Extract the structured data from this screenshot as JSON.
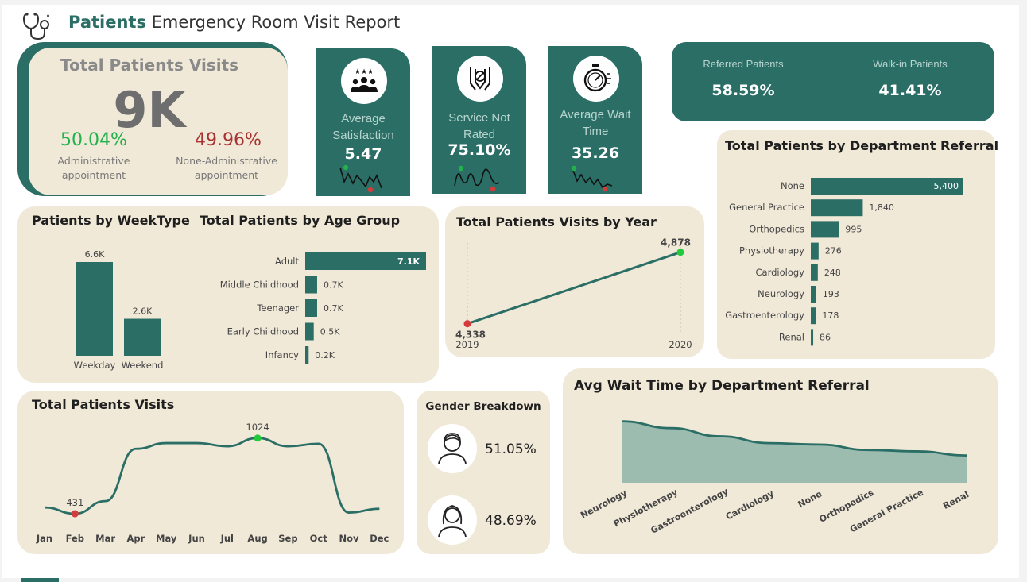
{
  "header": {
    "title_bold": "Patients",
    "title_rest": "Emergency Room Visit Report",
    "icon": "stethoscope-icon"
  },
  "total_visits_card": {
    "title": "Total Patients Visits",
    "value": "9K",
    "admin_pct": "50.04%",
    "admin_label": "Administrative appointment",
    "non_admin_pct": "49.96%",
    "non_admin_label": "None-Administrative appointment"
  },
  "kpis": [
    {
      "title": "Average Satisfaction",
      "value": "5.47",
      "icon": "people-rating-icon"
    },
    {
      "title": "Service Not Rated",
      "value": "75.10%",
      "icon": "no-rating-icon"
    },
    {
      "title": "Average Wait Time",
      "value": "35.26",
      "icon": "stopwatch-icon"
    }
  ],
  "referral_split": {
    "referred_label": "Referred Patients",
    "referred_value": "58.59%",
    "walkin_label": "Walk-in Patients",
    "walkin_value": "41.41%"
  },
  "colors": {
    "teal": "#2a6e65",
    "beige": "#f1e9d8",
    "green": "#22b14c",
    "red": "#a83232"
  },
  "chart_data": [
    {
      "type": "bar",
      "title": "Patients by WeekType",
      "categories": [
        "Weekday",
        "Weekend"
      ],
      "values": [
        6.6,
        2.6
      ],
      "labels": [
        "6.6K",
        "2.6K"
      ]
    },
    {
      "type": "bar",
      "orientation": "horizontal",
      "title": "Total Patients by Age Group",
      "categories": [
        "Adult",
        "Middle Childhood",
        "Teenager",
        "Early Childhood",
        "Infancy"
      ],
      "values": [
        7.1,
        0.7,
        0.7,
        0.5,
        0.2
      ],
      "labels": [
        "7.1K",
        "0.7K",
        "0.7K",
        "0.5K",
        "0.2K"
      ]
    },
    {
      "type": "line",
      "title": "Total Patients Visits by Year",
      "x": [
        "2019",
        "2020"
      ],
      "values": [
        4338,
        4878
      ],
      "labels": [
        "4,338",
        "4,878"
      ]
    },
    {
      "type": "bar",
      "orientation": "horizontal",
      "title": "Total Patients by Department Referral",
      "categories": [
        "None",
        "General Practice",
        "Orthopedics",
        "Physiotherapy",
        "Cardiology",
        "Neurology",
        "Gastroenterology",
        "Renal"
      ],
      "values": [
        5400,
        1840,
        995,
        276,
        248,
        193,
        178,
        86
      ],
      "labels": [
        "5,400",
        "1,840",
        "995",
        "276",
        "248",
        "193",
        "178",
        "86"
      ]
    },
    {
      "type": "line",
      "title": "Total Patients Visits",
      "categories": [
        "Jan",
        "Feb",
        "Mar",
        "Apr",
        "May",
        "Jun",
        "Jul",
        "Aug",
        "Sep",
        "Oct",
        "Nov",
        "Dec"
      ],
      "values": [
        480,
        431,
        530,
        940,
        985,
        985,
        960,
        1024,
        960,
        980,
        440,
        470
      ],
      "min_label": "431",
      "max_label": "1024"
    },
    {
      "type": "area",
      "title": "Avg Wait Time by Department Referral",
      "categories": [
        "Neurology",
        "Physiotherapy",
        "Gastroenterology",
        "Cardiology",
        "None",
        "Orthopedics",
        "General Practice",
        "Renal"
      ],
      "values": [
        36.5,
        36.0,
        35.4,
        34.9,
        34.8,
        34.4,
        34.3,
        34.0
      ],
      "ylim": [
        32,
        37
      ]
    }
  ],
  "gender": {
    "title": "Gender Breakdown",
    "male_pct": "51.05%",
    "female_pct": "48.69%"
  }
}
